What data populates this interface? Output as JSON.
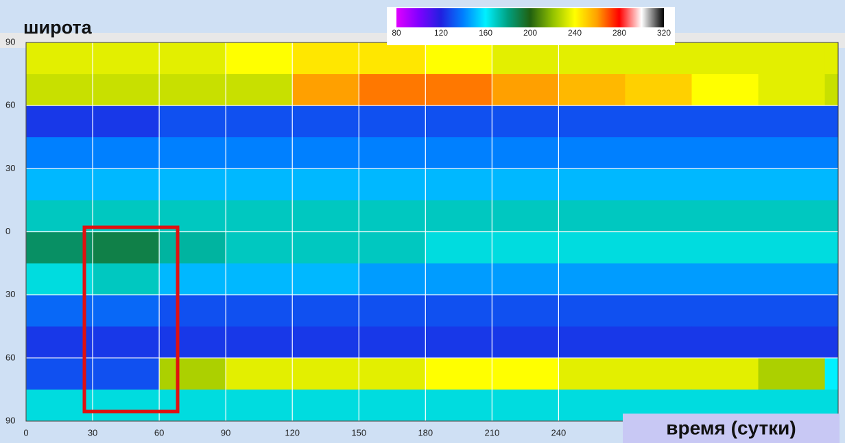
{
  "chart_data": {
    "type": "heatmap",
    "ylabel": "широта",
    "xlabel": "время (сутки)",
    "x": [
      0,
      30,
      60,
      90,
      120,
      150,
      180,
      210,
      240,
      270,
      300,
      330,
      360,
      366
    ],
    "y": [
      90,
      75,
      60,
      45,
      30,
      15,
      0,
      -15,
      -30,
      -45,
      -60,
      -75,
      -90
    ],
    "z": [
      [
        235,
        235,
        235,
        240,
        245,
        245,
        240,
        235,
        235,
        235,
        235,
        235,
        235
      ],
      [
        230,
        230,
        230,
        230,
        260,
        265,
        265,
        260,
        255,
        250,
        240,
        235,
        230
      ],
      [
        125,
        125,
        130,
        130,
        130,
        130,
        130,
        130,
        130,
        130,
        130,
        130,
        130
      ],
      [
        140,
        140,
        140,
        140,
        140,
        140,
        140,
        140,
        140,
        140,
        140,
        140,
        140
      ],
      [
        150,
        150,
        150,
        150,
        150,
        150,
        150,
        150,
        150,
        150,
        150,
        150,
        150
      ],
      [
        170,
        170,
        170,
        170,
        170,
        170,
        170,
        170,
        170,
        170,
        170,
        170,
        170
      ],
      [
        185,
        190,
        175,
        170,
        170,
        170,
        165,
        165,
        165,
        165,
        165,
        165,
        165
      ],
      [
        165,
        170,
        150,
        150,
        150,
        145,
        145,
        145,
        145,
        145,
        145,
        145,
        145
      ],
      [
        135,
        135,
        130,
        130,
        130,
        130,
        130,
        130,
        130,
        130,
        130,
        130,
        130
      ],
      [
        125,
        125,
        125,
        125,
        125,
        125,
        125,
        125,
        125,
        125,
        125,
        125,
        125
      ],
      [
        130,
        130,
        225,
        235,
        235,
        235,
        240,
        240,
        235,
        235,
        235,
        225,
        160
      ],
      [
        165,
        165,
        165,
        165,
        165,
        165,
        165,
        165,
        165,
        165,
        165,
        165,
        165
      ]
    ],
    "xlim": [
      0,
      366
    ],
    "ylim": [
      -90,
      90
    ],
    "xticks": [
      0,
      30,
      60,
      90,
      120,
      150,
      180,
      210,
      240
    ],
    "yticks": [
      90,
      60,
      30,
      0,
      {
        "value": -30,
        "label": "30"
      },
      {
        "value": -60,
        "label": "60"
      },
      {
        "value": -90,
        "label": "90"
      }
    ],
    "grid": true,
    "clim": [
      80,
      320
    ],
    "cticks": [
      80,
      120,
      160,
      200,
      240,
      280,
      320
    ],
    "colormap": [
      "#e000ff",
      "#8000ff",
      "#2020e0",
      "#0080ff",
      "#00f0ff",
      "#00a080",
      "#206010",
      "#90c000",
      "#ffff00",
      "#ffa000",
      "#ff0000",
      "#ffffff",
      "#000000"
    ]
  }
}
